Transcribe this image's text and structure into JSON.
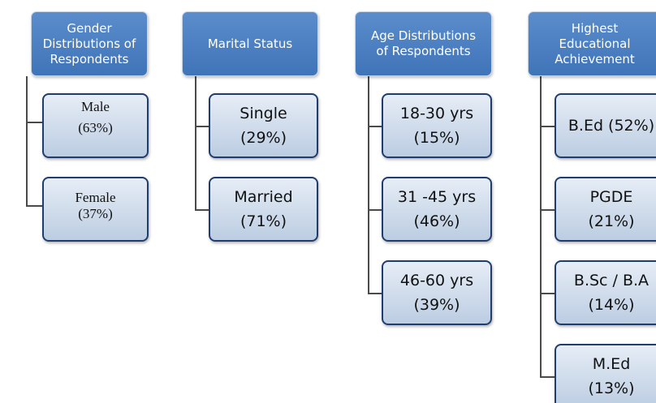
{
  "columns": [
    {
      "header": [
        "Gender",
        "Distributions of",
        "Respondents"
      ],
      "items": [
        [
          "Male",
          "(63%)"
        ],
        [
          "Female",
          "(37%)"
        ]
      ]
    },
    {
      "header": [
        "Marital Status"
      ],
      "items": [
        [
          "Single",
          "(29%)"
        ],
        [
          "Married",
          "(71%)"
        ]
      ]
    },
    {
      "header": [
        "Age  Distributions",
        "of Respondents"
      ],
      "items": [
        [
          "18-30 yrs",
          "(15%)"
        ],
        [
          "31 -45 yrs",
          "(46%)"
        ],
        [
          "46-60 yrs",
          "(39%)"
        ]
      ]
    },
    {
      "header": [
        "Highest",
        "Educational",
        "Achievement"
      ],
      "items": [
        [
          "B.Ed (52%)"
        ],
        [
          "PGDE",
          "(21%)"
        ],
        [
          "B.Sc / B.A",
          "(14%)"
        ],
        [
          "M.Ed",
          "(13%)"
        ]
      ]
    }
  ]
}
